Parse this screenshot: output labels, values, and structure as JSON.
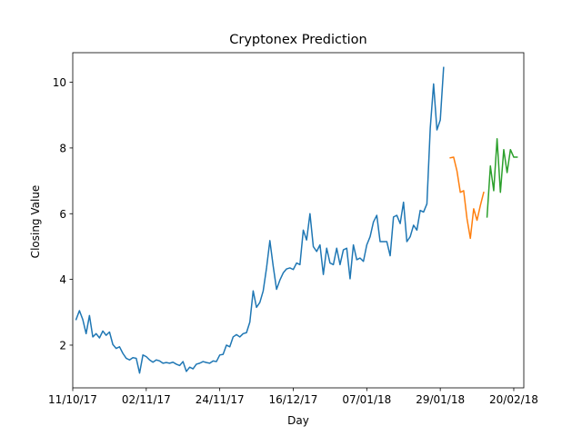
{
  "chart_data": {
    "type": "line",
    "title": "Cryptonex Prediction",
    "xlabel": "Day",
    "ylabel": "Closing Value",
    "x_axis": "date",
    "xlim": [
      "2017-10-11",
      "2018-02-23"
    ],
    "ylim": [
      0.7,
      10.9
    ],
    "x_ticks": [
      {
        "date": "2017-10-11",
        "label": "11/10/17"
      },
      {
        "date": "2017-11-02",
        "label": "02/11/17"
      },
      {
        "date": "2017-11-24",
        "label": "24/11/17"
      },
      {
        "date": "2017-12-16",
        "label": "16/12/17"
      },
      {
        "date": "2018-01-07",
        "label": "07/01/18"
      },
      {
        "date": "2018-01-29",
        "label": "29/01/18"
      },
      {
        "date": "2018-02-20",
        "label": "20/02/18"
      }
    ],
    "y_ticks": [
      2,
      4,
      6,
      8,
      10
    ],
    "grid": false,
    "legend": "none",
    "series": [
      {
        "color": "#1f77b4",
        "points": [
          [
            "2017-10-12",
            2.78
          ],
          [
            "2017-10-13",
            3.05
          ],
          [
            "2017-10-14",
            2.78
          ],
          [
            "2017-10-15",
            2.35
          ],
          [
            "2017-10-16",
            2.9
          ],
          [
            "2017-10-17",
            2.25
          ],
          [
            "2017-10-18",
            2.35
          ],
          [
            "2017-10-19",
            2.22
          ],
          [
            "2017-10-20",
            2.43
          ],
          [
            "2017-10-21",
            2.3
          ],
          [
            "2017-10-22",
            2.4
          ],
          [
            "2017-10-23",
            2.02
          ],
          [
            "2017-10-24",
            1.9
          ],
          [
            "2017-10-25",
            1.95
          ],
          [
            "2017-10-26",
            1.75
          ],
          [
            "2017-10-27",
            1.6
          ],
          [
            "2017-10-28",
            1.55
          ],
          [
            "2017-10-29",
            1.62
          ],
          [
            "2017-10-30",
            1.6
          ],
          [
            "2017-10-31",
            1.15
          ],
          [
            "2017-11-01",
            1.7
          ],
          [
            "2017-11-02",
            1.65
          ],
          [
            "2017-11-03",
            1.55
          ],
          [
            "2017-11-04",
            1.48
          ],
          [
            "2017-11-05",
            1.55
          ],
          [
            "2017-11-06",
            1.52
          ],
          [
            "2017-11-07",
            1.45
          ],
          [
            "2017-11-08",
            1.47
          ],
          [
            "2017-11-09",
            1.45
          ],
          [
            "2017-11-10",
            1.48
          ],
          [
            "2017-11-11",
            1.42
          ],
          [
            "2017-11-12",
            1.38
          ],
          [
            "2017-11-13",
            1.5
          ],
          [
            "2017-11-14",
            1.2
          ],
          [
            "2017-11-15",
            1.33
          ],
          [
            "2017-11-16",
            1.28
          ],
          [
            "2017-11-17",
            1.42
          ],
          [
            "2017-11-18",
            1.45
          ],
          [
            "2017-11-19",
            1.5
          ],
          [
            "2017-11-20",
            1.47
          ],
          [
            "2017-11-21",
            1.45
          ],
          [
            "2017-11-22",
            1.52
          ],
          [
            "2017-11-23",
            1.5
          ],
          [
            "2017-11-24",
            1.7
          ],
          [
            "2017-11-25",
            1.72
          ],
          [
            "2017-11-26",
            2.0
          ],
          [
            "2017-11-27",
            1.95
          ],
          [
            "2017-11-28",
            2.25
          ],
          [
            "2017-11-29",
            2.32
          ],
          [
            "2017-11-30",
            2.25
          ],
          [
            "2017-12-01",
            2.35
          ],
          [
            "2017-12-02",
            2.38
          ],
          [
            "2017-12-03",
            2.7
          ],
          [
            "2017-12-04",
            3.65
          ],
          [
            "2017-12-05",
            3.15
          ],
          [
            "2017-12-06",
            3.3
          ],
          [
            "2017-12-07",
            3.65
          ],
          [
            "2017-12-08",
            4.35
          ],
          [
            "2017-12-09",
            5.18
          ],
          [
            "2017-12-10",
            4.4
          ],
          [
            "2017-12-11",
            3.7
          ],
          [
            "2017-12-12",
            3.98
          ],
          [
            "2017-12-13",
            4.2
          ],
          [
            "2017-12-14",
            4.32
          ],
          [
            "2017-12-15",
            4.35
          ],
          [
            "2017-12-16",
            4.3
          ],
          [
            "2017-12-17",
            4.5
          ],
          [
            "2017-12-18",
            4.45
          ],
          [
            "2017-12-19",
            5.5
          ],
          [
            "2017-12-20",
            5.2
          ],
          [
            "2017-12-21",
            6.0
          ],
          [
            "2017-12-22",
            5.0
          ],
          [
            "2017-12-23",
            4.85
          ],
          [
            "2017-12-24",
            5.05
          ],
          [
            "2017-12-25",
            4.15
          ],
          [
            "2017-12-26",
            4.95
          ],
          [
            "2017-12-27",
            4.5
          ],
          [
            "2017-12-28",
            4.45
          ],
          [
            "2017-12-29",
            4.95
          ],
          [
            "2017-12-30",
            4.45
          ],
          [
            "2017-12-31",
            4.9
          ],
          [
            "2018-01-01",
            4.95
          ],
          [
            "2018-01-02",
            4.02
          ],
          [
            "2018-01-03",
            5.05
          ],
          [
            "2018-01-04",
            4.6
          ],
          [
            "2018-01-05",
            4.65
          ],
          [
            "2018-01-06",
            4.55
          ],
          [
            "2018-01-07",
            5.05
          ],
          [
            "2018-01-08",
            5.3
          ],
          [
            "2018-01-09",
            5.75
          ],
          [
            "2018-01-10",
            5.95
          ],
          [
            "2018-01-11",
            5.15
          ],
          [
            "2018-01-12",
            5.15
          ],
          [
            "2018-01-13",
            5.15
          ],
          [
            "2018-01-14",
            4.72
          ],
          [
            "2018-01-15",
            5.9
          ],
          [
            "2018-01-16",
            5.95
          ],
          [
            "2018-01-17",
            5.7
          ],
          [
            "2018-01-18",
            6.35
          ],
          [
            "2018-01-19",
            5.15
          ],
          [
            "2018-01-20",
            5.3
          ],
          [
            "2018-01-21",
            5.65
          ],
          [
            "2018-01-22",
            5.5
          ],
          [
            "2018-01-23",
            6.1
          ],
          [
            "2018-01-24",
            6.05
          ],
          [
            "2018-01-25",
            6.3
          ],
          [
            "2018-01-26",
            8.6
          ],
          [
            "2018-01-27",
            9.95
          ],
          [
            "2018-01-28",
            8.55
          ],
          [
            "2018-01-29",
            8.85
          ],
          [
            "2018-01-30",
            10.45
          ]
        ]
      },
      {
        "color": "#ff7f0e",
        "points": [
          [
            "2018-02-01",
            7.7
          ],
          [
            "2018-02-02",
            7.72
          ],
          [
            "2018-02-03",
            7.3
          ],
          [
            "2018-02-04",
            6.65
          ],
          [
            "2018-02-05",
            6.7
          ],
          [
            "2018-02-06",
            5.85
          ],
          [
            "2018-02-07",
            5.25
          ],
          [
            "2018-02-08",
            6.15
          ],
          [
            "2018-02-09",
            5.8
          ],
          [
            "2018-02-10",
            6.25
          ],
          [
            "2018-02-11",
            6.65
          ]
        ]
      },
      {
        "color": "#2ca02c",
        "points": [
          [
            "2018-02-12",
            5.9
          ],
          [
            "2018-02-13",
            7.45
          ],
          [
            "2018-02-14",
            6.7
          ],
          [
            "2018-02-15",
            8.28
          ],
          [
            "2018-02-16",
            6.65
          ],
          [
            "2018-02-17",
            7.95
          ],
          [
            "2018-02-18",
            7.25
          ],
          [
            "2018-02-19",
            7.95
          ],
          [
            "2018-02-20",
            7.72
          ],
          [
            "2018-02-21",
            7.72
          ]
        ]
      }
    ]
  }
}
